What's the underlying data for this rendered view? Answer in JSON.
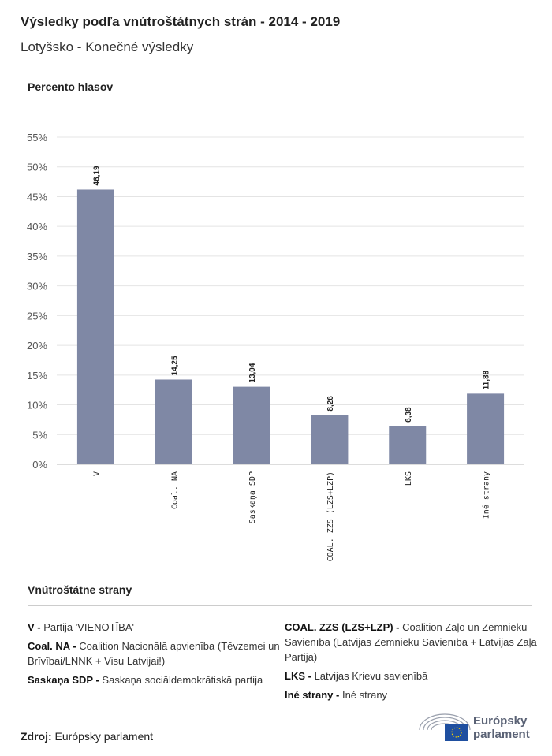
{
  "header": {
    "title": "Výsledky podľa vnútroštátnych strán - 2014 - 2019",
    "subtitle": "Lotyšsko - Konečné výsledky"
  },
  "chart_data": {
    "type": "bar",
    "ylabel": "Percento hlasov",
    "categories": [
      "V",
      "Coal. NA",
      "Saskaņa SDP",
      "COAL. ZZS (LZS+LZP)",
      "LKS",
      "Iné strany"
    ],
    "values": [
      46.19,
      14.25,
      13.04,
      8.26,
      6.38,
      11.88
    ],
    "data_labels": [
      "46,19",
      "14,25",
      "13,04",
      "8,26",
      "6,38",
      "11,88"
    ],
    "ylim": [
      0,
      55
    ],
    "yticks": [
      "0%",
      "5%",
      "10%",
      "15%",
      "20%",
      "25%",
      "30%",
      "35%",
      "40%",
      "45%",
      "50%",
      "55%"
    ],
    "grid": true,
    "bar_color": "#7f88a5"
  },
  "legend": {
    "title": "Vnútroštátne strany",
    "items": [
      {
        "abbr": "V",
        "sep": " - ",
        "name": "Partija 'VIENOTĪBA'"
      },
      {
        "abbr": "Coal. NA",
        "sep": " - ",
        "name": "Coalition Nacionālā apvienība (Tēvzemei un Brīvībai/LNNK + Visu Latvijai!)"
      },
      {
        "abbr": "Saskaņa SDP",
        "sep": " - ",
        "name": "Saskaņa sociāldemokrātiskā partija"
      },
      {
        "abbr": "COAL. ZZS (LZS+LZP)",
        "sep": " - ",
        "name": "Coalition Zaļo un Zemnieku Savienība (Latvijas Zemnieku Savienība + Latvijas Zaļā Partija)"
      },
      {
        "abbr": "LKS",
        "sep": " - ",
        "name": "Latvijas Krievu savienībā"
      },
      {
        "abbr": "Iné strany",
        "sep": " - ",
        "name": "Iné strany"
      }
    ]
  },
  "footer": {
    "source_label": "Zdroj:",
    "source": " Európsky parlament",
    "logo_line1": "Európsky",
    "logo_line2": "parlament"
  }
}
